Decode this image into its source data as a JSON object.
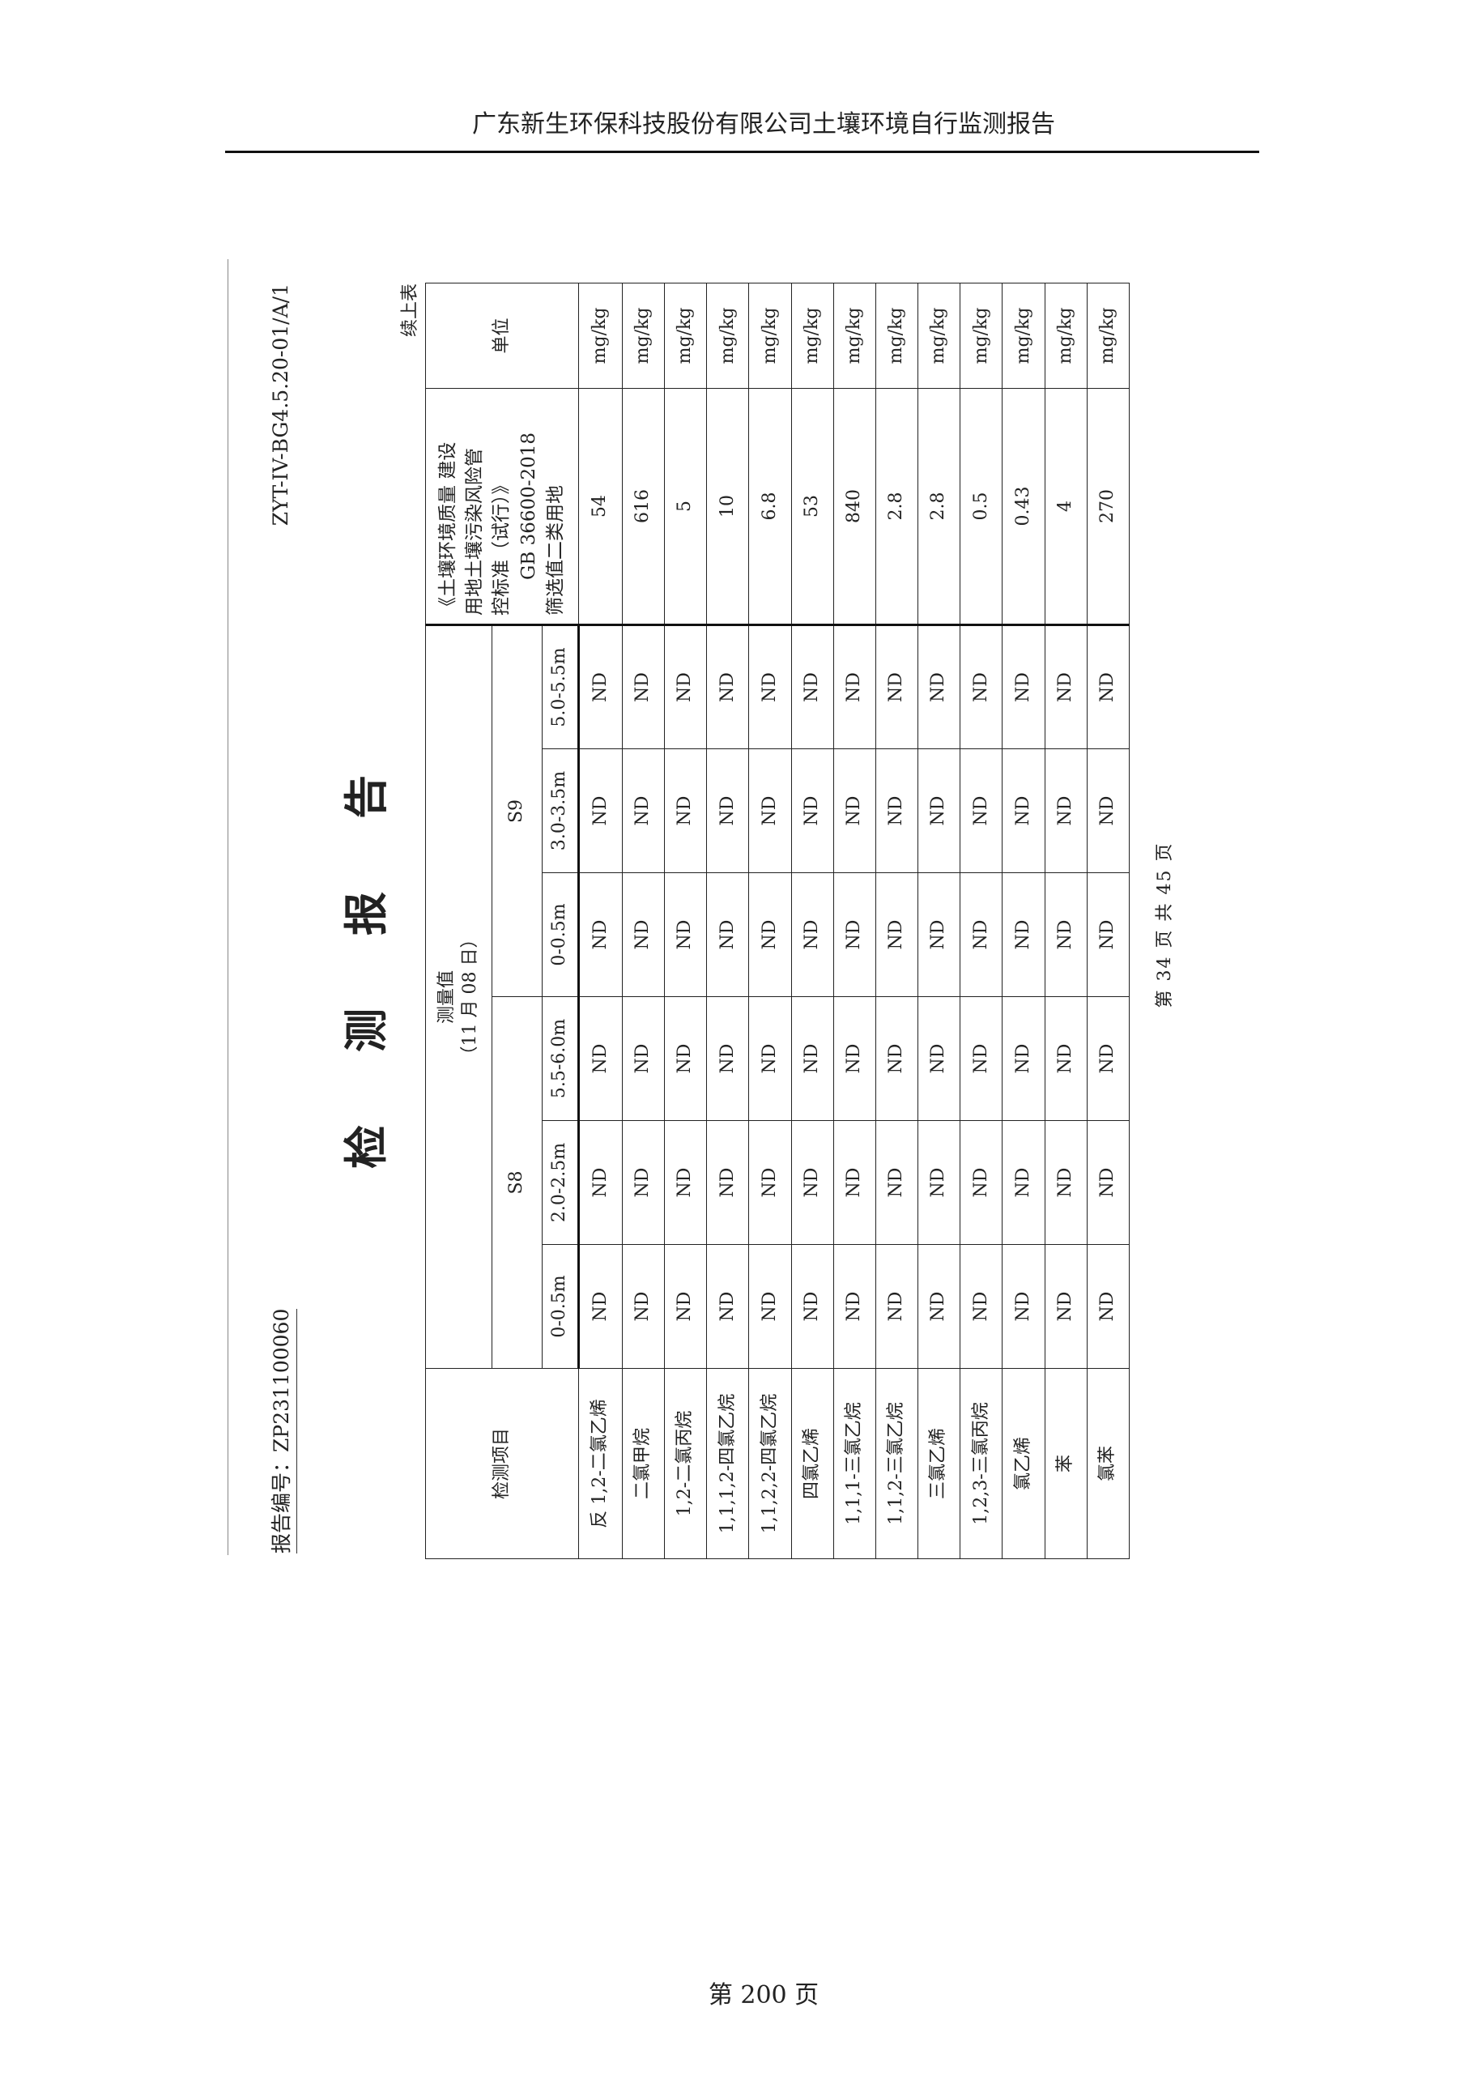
{
  "page_header": "广东新生环保科技股份有限公司土壤环境自行监测报告",
  "page_footer": "第 200 页",
  "scan": {
    "report_number": "报告编号：ZP231100060",
    "form_code": "ZYT-IV-BG4.5.20-01/A/1",
    "title": "检测报告",
    "continued": "续上表",
    "inner_footer": "第 34 页 共 45 页"
  },
  "table": {
    "item_header": "检测项目",
    "measured_header": "测量值",
    "measured_date": "（11 月 08 日）",
    "sites": [
      {
        "name": "S8",
        "depths": [
          "0-0.5m",
          "2.0-2.5m",
          "5.5-6.0m"
        ]
      },
      {
        "name": "S9",
        "depths": [
          "0-0.5m",
          "3.0-3.5m",
          "5.0-5.5m"
        ]
      }
    ],
    "standard_header": [
      "《土壤环境质量 建设",
      "用地土壤污染风险管",
      "控标准（试行）》",
      "GB 36600-2018",
      "筛选值二类用地"
    ],
    "unit_header": "单位",
    "rows": [
      {
        "item": "反 1,2-二氯乙烯",
        "values": [
          "ND",
          "ND",
          "ND",
          "ND",
          "ND",
          "ND"
        ],
        "standard": "54",
        "unit": "mg/kg"
      },
      {
        "item": "二氯甲烷",
        "values": [
          "ND",
          "ND",
          "ND",
          "ND",
          "ND",
          "ND"
        ],
        "standard": "616",
        "unit": "mg/kg"
      },
      {
        "item": "1,2-二氯丙烷",
        "values": [
          "ND",
          "ND",
          "ND",
          "ND",
          "ND",
          "ND"
        ],
        "standard": "5",
        "unit": "mg/kg"
      },
      {
        "item": "1,1,1,2-四氯乙烷",
        "values": [
          "ND",
          "ND",
          "ND",
          "ND",
          "ND",
          "ND"
        ],
        "standard": "10",
        "unit": "mg/kg"
      },
      {
        "item": "1,1,2,2-四氯乙烷",
        "values": [
          "ND",
          "ND",
          "ND",
          "ND",
          "ND",
          "ND"
        ],
        "standard": "6.8",
        "unit": "mg/kg"
      },
      {
        "item": "四氯乙烯",
        "values": [
          "ND",
          "ND",
          "ND",
          "ND",
          "ND",
          "ND"
        ],
        "standard": "53",
        "unit": "mg/kg"
      },
      {
        "item": "1,1,1-三氯乙烷",
        "values": [
          "ND",
          "ND",
          "ND",
          "ND",
          "ND",
          "ND"
        ],
        "standard": "840",
        "unit": "mg/kg"
      },
      {
        "item": "1,1,2-三氯乙烷",
        "values": [
          "ND",
          "ND",
          "ND",
          "ND",
          "ND",
          "ND"
        ],
        "standard": "2.8",
        "unit": "mg/kg"
      },
      {
        "item": "三氯乙烯",
        "values": [
          "ND",
          "ND",
          "ND",
          "ND",
          "ND",
          "ND"
        ],
        "standard": "2.8",
        "unit": "mg/kg"
      },
      {
        "item": "1,2,3-三氯丙烷",
        "values": [
          "ND",
          "ND",
          "ND",
          "ND",
          "ND",
          "ND"
        ],
        "standard": "0.5",
        "unit": "mg/kg"
      },
      {
        "item": "氯乙烯",
        "values": [
          "ND",
          "ND",
          "ND",
          "ND",
          "ND",
          "ND"
        ],
        "standard": "0.43",
        "unit": "mg/kg"
      },
      {
        "item": "苯",
        "values": [
          "ND",
          "ND",
          "ND",
          "ND",
          "ND",
          "ND"
        ],
        "standard": "4",
        "unit": "mg/kg"
      },
      {
        "item": "氯苯",
        "values": [
          "ND",
          "ND",
          "ND",
          "ND",
          "ND",
          "ND"
        ],
        "standard": "270",
        "unit": "mg/kg"
      }
    ]
  }
}
